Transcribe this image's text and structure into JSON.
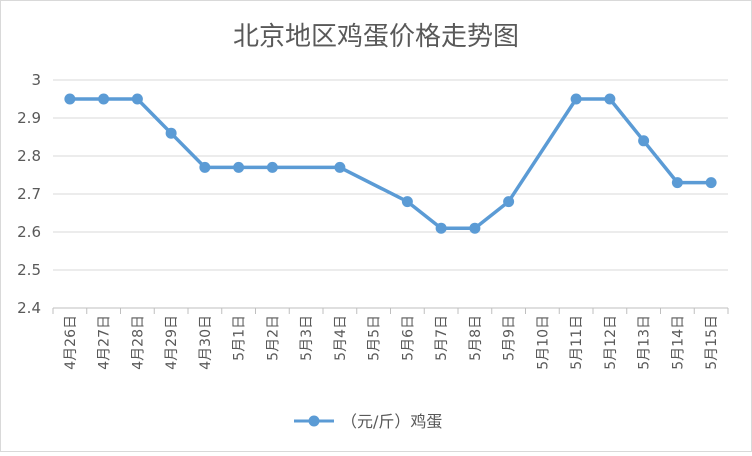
{
  "chart_data": {
    "type": "line",
    "title": "北京地区鸡蛋价格走势图",
    "xlabel": "",
    "ylabel": "",
    "categories": [
      "4月26日",
      "4月27日",
      "4月28日",
      "4月29日",
      "4月30日",
      "5月1日",
      "5月2日",
      "5月3日",
      "5月4日",
      "5月5日",
      "5月6日",
      "5月7日",
      "5月8日",
      "5月9日",
      "5月10日",
      "5月11日",
      "5月12日",
      "5月13日",
      "5月14日",
      "5月15日"
    ],
    "series": [
      {
        "name": "（元/斤）鸡蛋",
        "values": [
          2.95,
          2.95,
          2.95,
          2.86,
          2.77,
          2.77,
          2.77,
          null,
          2.77,
          null,
          2.68,
          2.61,
          2.61,
          2.68,
          null,
          2.95,
          2.95,
          2.84,
          2.73,
          2.73
        ]
      }
    ],
    "ylim": [
      2.4,
      3.0
    ],
    "yticks": [
      "2.4",
      "2.5",
      "2.6",
      "2.7",
      "2.8",
      "2.9",
      "3"
    ],
    "grid": true,
    "legend_position": "bottom",
    "line_color": "#5b9bd5",
    "gridline_color": "#d9d9d9"
  }
}
